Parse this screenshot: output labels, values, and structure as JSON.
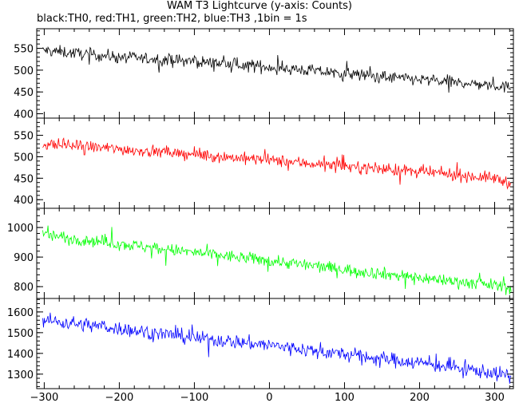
{
  "chart_data": {
    "type": "line",
    "title": "WAM T3 Lightcurve (y-axis: Counts)",
    "subtitle": "black:TH0, red:TH1, green:TH2, blue:TH3 ,1bin = 1s",
    "xlim": [
      -310,
      325
    ],
    "x_ticks": [
      -300,
      -200,
      -100,
      0,
      100,
      200,
      300
    ],
    "x_tick_labels": [
      "−300",
      "−200",
      "−100",
      "0",
      "100",
      "200",
      "300"
    ],
    "panels": [
      {
        "series": "TH0",
        "color": "#000000",
        "ylim": [
          390,
          595
        ],
        "y_ticks": [
          400,
          450,
          500,
          550
        ],
        "y_tick_labels": [
          "400",
          "450",
          "500",
          "550"
        ],
        "trend": {
          "x": [
            -300,
            -200,
            -100,
            0,
            100,
            200,
            300,
            320
          ],
          "y": [
            545,
            530,
            520,
            507,
            492,
            478,
            465,
            460
          ]
        },
        "noise_amplitude": 18
      },
      {
        "series": "TH1",
        "color": "#ff0000",
        "ylim": [
          380,
          590
        ],
        "y_ticks": [
          400,
          450,
          500,
          550
        ],
        "y_tick_labels": [
          "400",
          "450",
          "500",
          "550"
        ],
        "trend": {
          "x": [
            -300,
            -200,
            -100,
            0,
            100,
            200,
            300,
            320
          ],
          "y": [
            530,
            518,
            505,
            492,
            478,
            465,
            450,
            440
          ]
        },
        "noise_amplitude": 18
      },
      {
        "series": "TH2",
        "color": "#00ff00",
        "ylim": [
          760,
          1065
        ],
        "y_ticks": [
          800,
          900,
          1000
        ],
        "y_tick_labels": [
          "800",
          "900",
          "1000"
        ],
        "trend": {
          "x": [
            -300,
            -200,
            -100,
            0,
            100,
            200,
            300,
            320
          ],
          "y": [
            975,
            945,
            915,
            888,
            858,
            830,
            805,
            795
          ]
        },
        "noise_amplitude": 27
      },
      {
        "series": "TH3",
        "color": "#0000ff",
        "ylim": [
          1230,
          1665
        ],
        "y_ticks": [
          1300,
          1400,
          1500,
          1600
        ],
        "y_tick_labels": [
          "1300",
          "1400",
          "1500",
          "1600"
        ],
        "trend": {
          "x": [
            -300,
            -200,
            -100,
            0,
            100,
            200,
            300,
            320
          ],
          "y": [
            1560,
            1520,
            1475,
            1440,
            1395,
            1355,
            1305,
            1290
          ]
        },
        "noise_amplitude": 45
      }
    ]
  }
}
